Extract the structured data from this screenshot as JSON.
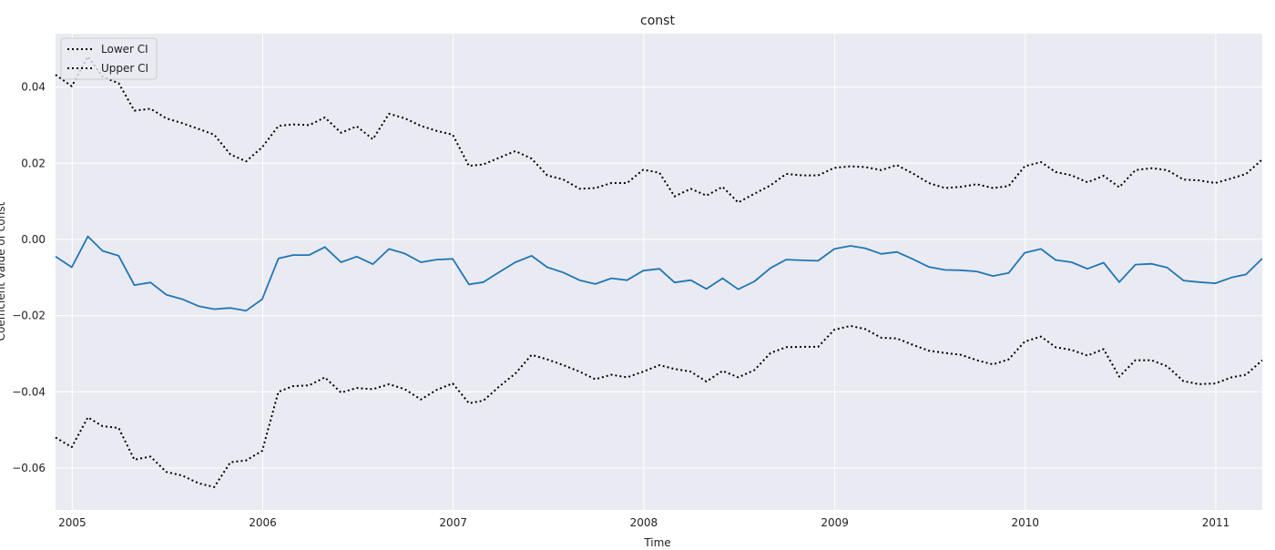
{
  "chart_data": {
    "type": "line",
    "title": "const",
    "xlabel": "Time",
    "ylabel": "Coefficient value of const",
    "xlim": [
      "2004-11-30",
      "2011-03-31"
    ],
    "ylim": [
      -0.071,
      0.054
    ],
    "x_ticks": [
      "2005",
      "2006",
      "2007",
      "2008",
      "2009",
      "2010",
      "2011"
    ],
    "y_ticks": [
      0.04,
      0.02,
      0.0,
      -0.02,
      -0.04,
      -0.06
    ],
    "y_tick_labels": [
      "0.04",
      "0.02",
      "0.00",
      "−0.02",
      "−0.04",
      "−0.06"
    ],
    "grid": true,
    "legend": {
      "position": "top-left",
      "entries": [
        "Lower CI",
        "Upper CI"
      ]
    },
    "x": [
      "2004-11-30",
      "2004-12-31",
      "2005-01-31",
      "2005-02-28",
      "2005-03-31",
      "2005-04-30",
      "2005-05-31",
      "2005-06-30",
      "2005-07-31",
      "2005-08-31",
      "2005-09-30",
      "2005-10-31",
      "2005-11-30",
      "2005-12-31",
      "2006-01-31",
      "2006-02-28",
      "2006-03-31",
      "2006-04-30",
      "2006-05-31",
      "2006-06-30",
      "2006-07-31",
      "2006-08-31",
      "2006-09-30",
      "2006-10-31",
      "2006-11-30",
      "2006-12-31",
      "2007-01-31",
      "2007-02-28",
      "2007-03-31",
      "2007-04-30",
      "2007-05-31",
      "2007-06-30",
      "2007-07-31",
      "2007-08-31",
      "2007-09-30",
      "2007-10-31",
      "2007-11-30",
      "2007-12-31",
      "2008-01-31",
      "2008-02-29",
      "2008-03-31",
      "2008-04-30",
      "2008-05-31",
      "2008-06-30",
      "2008-07-31",
      "2008-08-31",
      "2008-09-30",
      "2008-10-31",
      "2008-11-30",
      "2008-12-31",
      "2009-01-31",
      "2009-02-28",
      "2009-03-31",
      "2009-04-30",
      "2009-05-31",
      "2009-06-30",
      "2009-07-31",
      "2009-08-31",
      "2009-09-30",
      "2009-10-31",
      "2009-11-30",
      "2009-12-31",
      "2010-01-31",
      "2010-02-28",
      "2010-03-31",
      "2010-04-30",
      "2010-05-31",
      "2010-06-30",
      "2010-07-31",
      "2010-08-31",
      "2010-09-30",
      "2010-10-31",
      "2010-11-30",
      "2010-12-31",
      "2011-01-31",
      "2011-02-28",
      "2011-03-31"
    ],
    "series": [
      {
        "color": "#1f77b4",
        "style": "solid",
        "values": [
          -0.0045,
          -0.0073,
          0.0008,
          -0.003,
          -0.0043,
          -0.012,
          -0.0113,
          -0.0145,
          -0.0157,
          -0.0175,
          -0.0183,
          -0.018,
          -0.0187,
          -0.0157,
          -0.005,
          -0.0041,
          -0.0041,
          -0.002,
          -0.006,
          -0.0045,
          -0.0065,
          -0.0025,
          -0.0037,
          -0.006,
          -0.0053,
          -0.0051,
          -0.0118,
          -0.0112,
          -0.0085,
          -0.006,
          -0.0043,
          -0.0073,
          -0.0087,
          -0.0107,
          -0.0117,
          -0.0102,
          -0.0107,
          -0.0082,
          -0.0077,
          -0.0113,
          -0.0107,
          -0.013,
          -0.0102,
          -0.0131,
          -0.011,
          -0.0075,
          -0.0053,
          -0.0055,
          -0.0056,
          -0.0025,
          -0.0017,
          -0.0023,
          -0.0038,
          -0.0033,
          -0.0052,
          -0.0072,
          -0.008,
          -0.0081,
          -0.0084,
          -0.0096,
          -0.0088,
          -0.0035,
          -0.0025,
          -0.0054,
          -0.006,
          -0.0077,
          -0.0061,
          -0.0112,
          -0.0066,
          -0.0064,
          -0.0074,
          -0.0108,
          -0.0112,
          -0.0115,
          -0.01,
          -0.0092,
          -0.005
        ]
      },
      {
        "name": "Lower CI",
        "color": "#000000",
        "style": "dotted",
        "values": [
          -0.052,
          -0.0545,
          -0.0467,
          -0.049,
          -0.0495,
          -0.0578,
          -0.057,
          -0.061,
          -0.062,
          -0.064,
          -0.065,
          -0.0585,
          -0.058,
          -0.0555,
          -0.04,
          -0.0385,
          -0.0383,
          -0.0362,
          -0.0402,
          -0.039,
          -0.0393,
          -0.038,
          -0.0393,
          -0.042,
          -0.0395,
          -0.0378,
          -0.043,
          -0.0423,
          -0.0385,
          -0.0352,
          -0.0303,
          -0.0315,
          -0.033,
          -0.0347,
          -0.0367,
          -0.0355,
          -0.0362,
          -0.0347,
          -0.033,
          -0.034,
          -0.0347,
          -0.0373,
          -0.0345,
          -0.0362,
          -0.0343,
          -0.0298,
          -0.0283,
          -0.0282,
          -0.0282,
          -0.0237,
          -0.0227,
          -0.0235,
          -0.0258,
          -0.026,
          -0.0277,
          -0.0292,
          -0.0298,
          -0.0303,
          -0.0317,
          -0.0328,
          -0.0315,
          -0.0268,
          -0.0255,
          -0.0283,
          -0.029,
          -0.0305,
          -0.0288,
          -0.036,
          -0.0317,
          -0.0317,
          -0.0333,
          -0.0372,
          -0.038,
          -0.0378,
          -0.0362,
          -0.0355,
          -0.0317
        ]
      },
      {
        "name": "Upper CI",
        "color": "#000000",
        "style": "dotted",
        "values": [
          0.0432,
          0.0402,
          0.048,
          0.0427,
          0.041,
          0.0338,
          0.0343,
          0.0318,
          0.0305,
          0.029,
          0.0275,
          0.0223,
          0.0205,
          0.0242,
          0.0298,
          0.0302,
          0.03,
          0.032,
          0.028,
          0.0297,
          0.0263,
          0.033,
          0.0318,
          0.0298,
          0.0285,
          0.0275,
          0.0193,
          0.0197,
          0.0215,
          0.0232,
          0.0212,
          0.0168,
          0.0157,
          0.0133,
          0.0135,
          0.0148,
          0.0148,
          0.0183,
          0.0175,
          0.0113,
          0.0133,
          0.0115,
          0.0138,
          0.0097,
          0.012,
          0.0142,
          0.0172,
          0.0168,
          0.0168,
          0.0188,
          0.0192,
          0.019,
          0.0182,
          0.0195,
          0.0173,
          0.0148,
          0.0135,
          0.0138,
          0.0145,
          0.0135,
          0.014,
          0.0192,
          0.0203,
          0.0177,
          0.0168,
          0.015,
          0.0167,
          0.0137,
          0.0182,
          0.0187,
          0.0182,
          0.0157,
          0.0155,
          0.0148,
          0.016,
          0.0172,
          0.021
        ]
      }
    ]
  }
}
